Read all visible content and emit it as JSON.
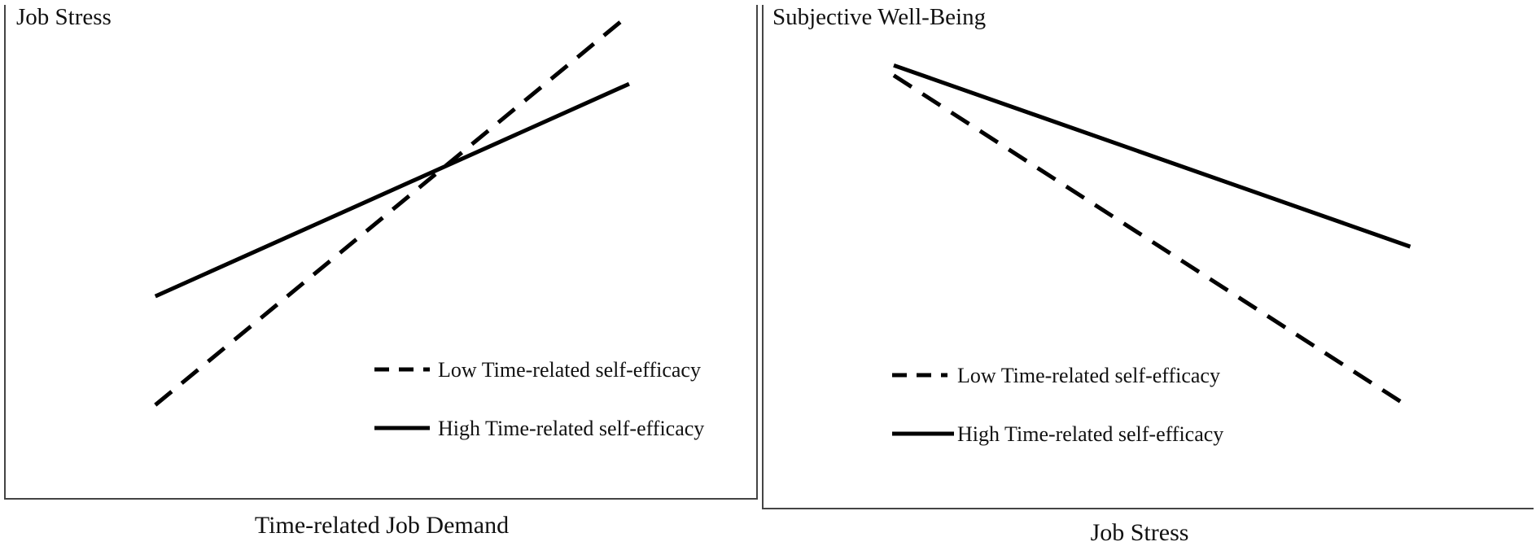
{
  "chart_data": [
    {
      "type": "line",
      "title": "",
      "ylabel": "Job Stress",
      "xlabel": "Time-related Job Demand",
      "xlim": [
        0,
        1
      ],
      "ylim": [
        0,
        1
      ],
      "x": [
        0.2,
        0.83
      ],
      "series": [
        {
          "name": "Low Time-related self-efficacy",
          "style": "dashed",
          "values": [
            0.19,
            0.98
          ]
        },
        {
          "name": "High Time-related self-efficacy",
          "style": "solid",
          "values": [
            0.41,
            0.84
          ]
        }
      ],
      "legend_position": "bottom-right"
    },
    {
      "type": "line",
      "title": "",
      "ylabel": "Subjective Well-Being",
      "xlabel": "Job Stress",
      "xlim": [
        0,
        1
      ],
      "ylim": [
        0,
        1
      ],
      "x": [
        0.17,
        0.84
      ],
      "series": [
        {
          "name": "Low Time-related self-efficacy",
          "style": "dashed",
          "values": [
            0.86,
            0.2
          ]
        },
        {
          "name": "High Time-related self-efficacy",
          "style": "solid",
          "values": [
            0.88,
            0.52
          ]
        }
      ],
      "legend_position": "bottom-left"
    }
  ],
  "colors": {
    "line": "#000000",
    "axis": "#444444"
  }
}
